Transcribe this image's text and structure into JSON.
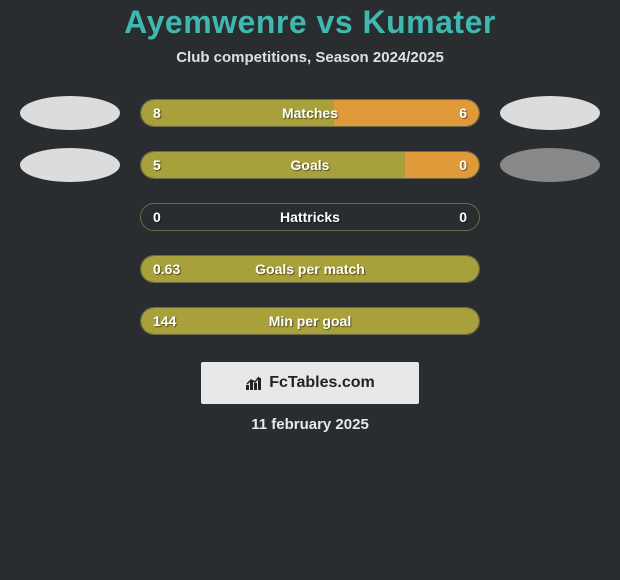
{
  "header": {
    "player1": "Ayemwenre",
    "vs": "vs",
    "player2": "Kumater",
    "subtitle": "Club competitions, Season 2024/2025"
  },
  "stats": [
    {
      "label": "Matches",
      "left_val": "8",
      "right_val": "6",
      "left_fill_pct": 57,
      "right_fill_pct": 43,
      "full_fill": false,
      "show_left_ellipse": true,
      "show_right_ellipse": true,
      "left_ellipse_dark": false,
      "right_ellipse_dark": false
    },
    {
      "label": "Goals",
      "left_val": "5",
      "right_val": "0",
      "left_fill_pct": 78,
      "right_fill_pct": 22,
      "full_fill": false,
      "show_left_ellipse": true,
      "show_right_ellipse": true,
      "left_ellipse_dark": false,
      "right_ellipse_dark": true
    },
    {
      "label": "Hattricks",
      "left_val": "0",
      "right_val": "0",
      "left_fill_pct": 0,
      "right_fill_pct": 0,
      "full_fill": false,
      "show_left_ellipse": false,
      "show_right_ellipse": false
    },
    {
      "label": "Goals per match",
      "left_val": "0.63",
      "right_val": "",
      "left_fill_pct": 100,
      "right_fill_pct": 0,
      "full_fill": true,
      "show_left_ellipse": false,
      "show_right_ellipse": false
    },
    {
      "label": "Min per goal",
      "left_val": "144",
      "right_val": "",
      "left_fill_pct": 100,
      "right_fill_pct": 0,
      "full_fill": true,
      "show_left_ellipse": false,
      "show_right_ellipse": false
    }
  ],
  "attribution": "FcTables.com",
  "date": "11 february 2025",
  "colors": {
    "bg": "#2a2d30",
    "accent_title": "#3fb8b0",
    "bar_fill_left": "#a8a03a",
    "bar_fill_right": "#e09a3a",
    "ellipse": "#dcdcdc",
    "ellipse_dark": "#888",
    "attr_bg": "#e8e8e8"
  }
}
